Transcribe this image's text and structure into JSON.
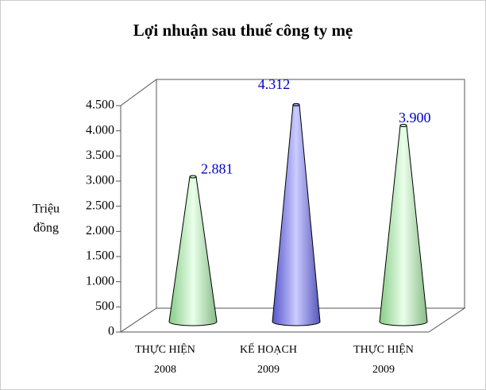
{
  "chart_data": {
    "type": "cone",
    "title": "Lợi nhuận sau thuế công ty mẹ",
    "y_label": [
      "Triệu",
      "đồng"
    ],
    "categories": [
      [
        "THỰC HIỆN",
        "2008"
      ],
      [
        "KẾ HOẠCH",
        "2009"
      ],
      [
        "THỰC HIỆN",
        "2009"
      ]
    ],
    "values": [
      2881,
      4312,
      3900
    ],
    "value_labels": [
      "2.881",
      "4.312",
      "3.900"
    ],
    "colors": [
      "#ccffcc",
      "#9999ff",
      "#ccffcc"
    ],
    "ylim": [
      0,
      4500
    ],
    "yticks": [
      0,
      500,
      {
        "value": 1000,
        "label": "1.000"
      },
      {
        "value": 1500,
        "label": "1.500"
      },
      {
        "value": 2000,
        "label": "2.000"
      },
      {
        "value": 2500,
        "label": "2.500"
      },
      {
        "value": 3000,
        "label": "3.000"
      },
      {
        "value": 3500,
        "label": "3.500"
      },
      {
        "value": 4000,
        "label": "4.000"
      },
      {
        "value": 4500,
        "label": "4.500"
      }
    ]
  }
}
